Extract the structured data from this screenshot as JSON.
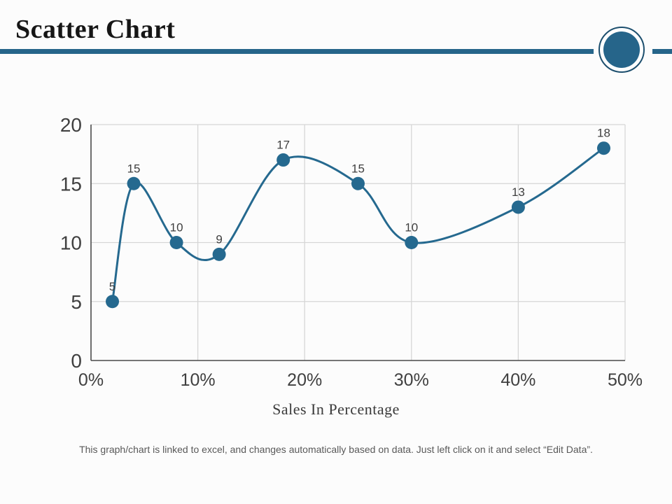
{
  "header": {
    "title": "Scatter Chart"
  },
  "decor": {
    "accent_color": "#26658a",
    "accent_dark": "#1d4f6e"
  },
  "chart_data": {
    "type": "scatter",
    "title": "",
    "xlabel": "Sales In Percentage",
    "ylabel": "",
    "x": [
      2,
      4,
      8,
      12,
      18,
      25,
      30,
      40,
      48
    ],
    "y": [
      5,
      15,
      10,
      9,
      17,
      15,
      10,
      13,
      18
    ],
    "point_labels": [
      "5",
      "15",
      "10",
      "9",
      "17",
      "15",
      "10",
      "13",
      "18"
    ],
    "xlim": [
      0,
      50
    ],
    "ylim": [
      0,
      20
    ],
    "xtick_values": [
      0,
      10,
      20,
      30,
      40,
      50
    ],
    "xtick_labels": [
      "0%",
      "10%",
      "20%",
      "30%",
      "40%",
      "50%"
    ],
    "ytick_values": [
      0,
      5,
      10,
      15,
      20
    ],
    "ytick_labels": [
      "0",
      "5",
      "10",
      "15",
      "20"
    ],
    "grid": true,
    "smooth_line": true,
    "legend": null,
    "line_color": "#25698f",
    "marker_color": "#25698f",
    "grid_color": "#d6d6d6",
    "axis_color": "#4a4a4a",
    "tick_color": "#404040",
    "data_label_color": "#3f3f3f"
  },
  "footer": {
    "note": "This graph/chart is linked to excel, and changes automatically based on data. Just left click on it and select “Edit Data”."
  }
}
